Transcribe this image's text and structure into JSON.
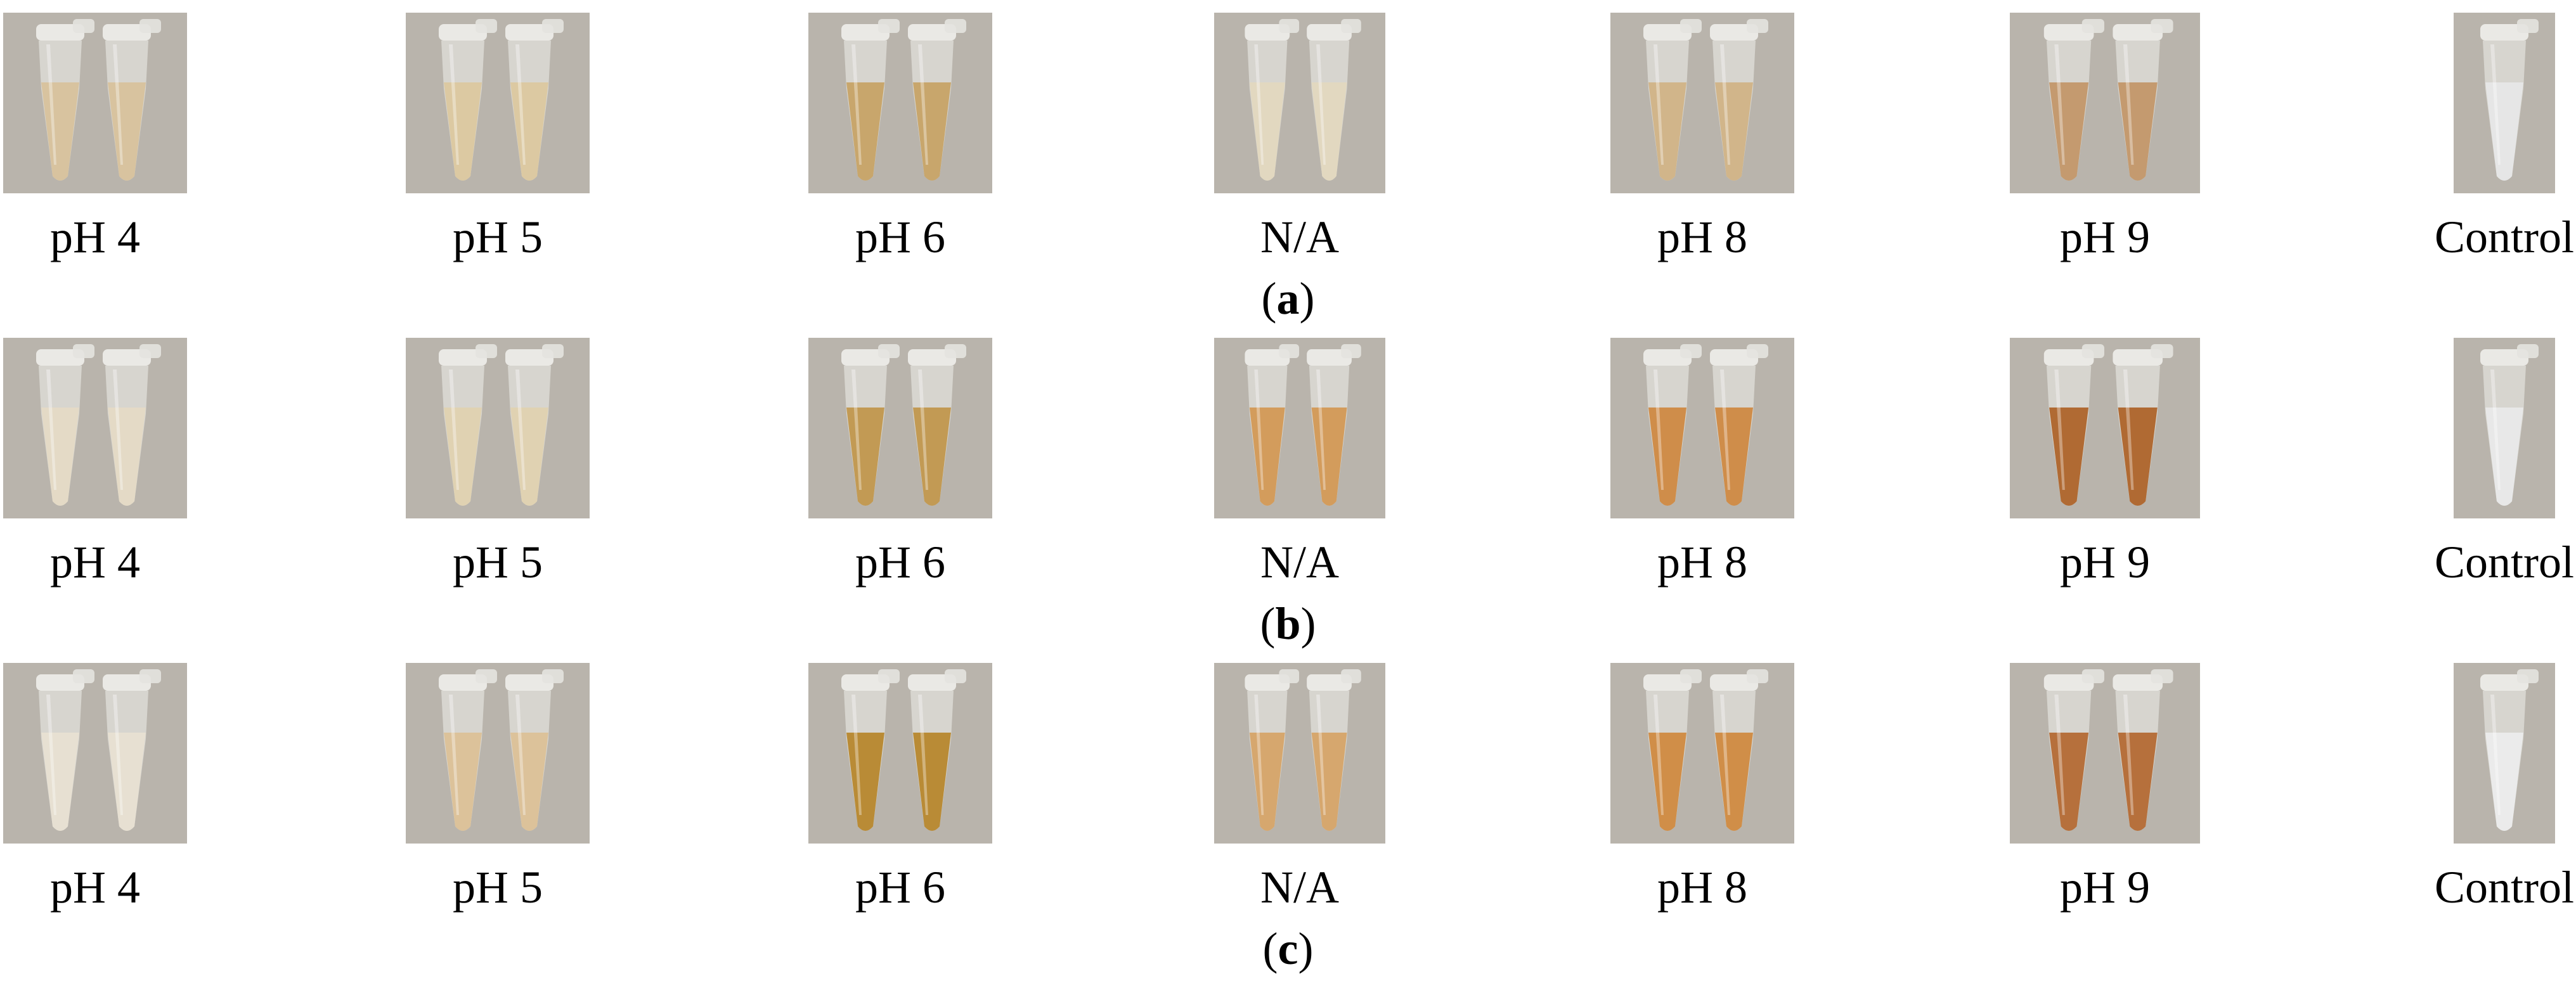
{
  "panels": [
    {
      "caption_letter": "a",
      "tubes": [
        {
          "label": "pH 4",
          "liquid_color": "#d8c39f"
        },
        {
          "label": "pH 5",
          "liquid_color": "#dcc9a2"
        },
        {
          "label": "pH 6",
          "liquid_color": "#c8a66c"
        },
        {
          "label": "N/A",
          "liquid_color": "#e2d8c0"
        },
        {
          "label": "pH 8",
          "liquid_color": "#d1b58a"
        },
        {
          "label": "pH 9",
          "liquid_color": "#c49a6f"
        },
        {
          "label": "Control",
          "liquid_color": "#e6e6e6"
        }
      ]
    },
    {
      "caption_letter": "b",
      "tubes": [
        {
          "label": "pH 4",
          "liquid_color": "#e4dac6"
        },
        {
          "label": "pH 5",
          "liquid_color": "#e0d2b2"
        },
        {
          "label": "pH 6",
          "liquid_color": "#c29a54"
        },
        {
          "label": "N/A",
          "liquid_color": "#d39c5c"
        },
        {
          "label": "pH 8",
          "liquid_color": "#cf8d4a"
        },
        {
          "label": "pH 9",
          "liquid_color": "#b06a33"
        },
        {
          "label": "Control",
          "liquid_color": "#e8e8e8"
        }
      ]
    },
    {
      "caption_letter": "c",
      "tubes": [
        {
          "label": "pH 4",
          "liquid_color": "#e7e0d2"
        },
        {
          "label": "pH 5",
          "liquid_color": "#dcc29a"
        },
        {
          "label": "pH 6",
          "liquid_color": "#b98b36"
        },
        {
          "label": "N/A",
          "liquid_color": "#d6a76e"
        },
        {
          "label": "pH 8",
          "liquid_color": "#d08e48"
        },
        {
          "label": "pH 9",
          "liquid_color": "#b6703c"
        },
        {
          "label": "Control",
          "liquid_color": "#ebebeb"
        }
      ]
    }
  ]
}
